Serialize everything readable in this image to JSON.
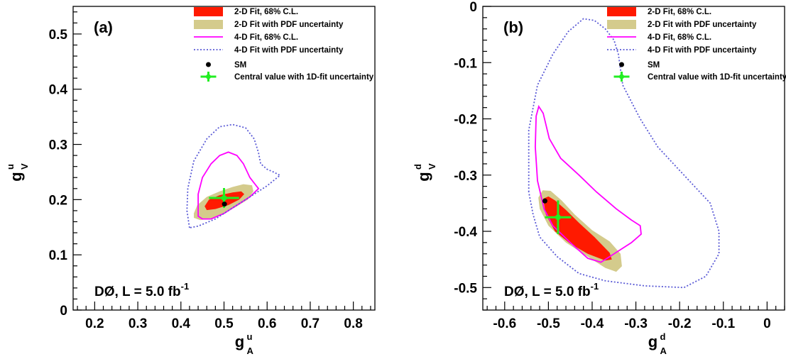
{
  "colors": {
    "fit2d": "#ff1a00",
    "pdf2d": "#d4cb8c",
    "fit4d": "#ff00ff",
    "pdf4d": "#5b5bd6",
    "central": "#22ee22",
    "sm": "#000000"
  },
  "legend": [
    {
      "key": "fit2d",
      "label": "2-D Fit, 68% C.L.",
      "style": "box",
      "color": "#ff1a00"
    },
    {
      "key": "pdf2d",
      "label": "2-D Fit with PDF uncertainty",
      "style": "box",
      "color": "#d4cb8c"
    },
    {
      "key": "fit4d",
      "label": "4-D Fit, 68% C.L.",
      "style": "line",
      "color": "#ff00ff"
    },
    {
      "key": "pdf4d",
      "label": "4-D Fit with PDF uncertainty",
      "style": "dotted",
      "color": "#5b5bd6"
    },
    {
      "key": "sm",
      "label": "SM",
      "style": "marker",
      "color": "#000000"
    },
    {
      "key": "central",
      "label": "Central value with 1D-fit uncertainty",
      "style": "cross",
      "color": "#22ee22"
    }
  ],
  "chart_data": [
    {
      "type": "scatter",
      "panel_label": "(a)",
      "experiment_label": "DØ, L = 5.0 fb",
      "experiment_label_sup": "-1",
      "xlabel": {
        "main": "g",
        "sup": "u",
        "sub": "A"
      },
      "ylabel": {
        "main": "g",
        "sup": "u",
        "sub": "V"
      },
      "xlim": [
        0.15,
        0.85
      ],
      "ylim": [
        0,
        0.55
      ],
      "xticks": [
        "0.2",
        "0.3",
        "0.4",
        "0.5",
        "0.6",
        "0.7",
        "0.8"
      ],
      "yticks": [
        "0",
        "0.1",
        "0.2",
        "0.3",
        "0.4",
        "0.5"
      ],
      "legend_position": "top-right",
      "grid": false,
      "sm_point": [
        0.501,
        0.192
      ],
      "central_value": {
        "x": 0.5,
        "y": 0.203,
        "xerr": 0.035,
        "yerr": 0.018
      },
      "contours": {
        "pdf4d": [
          [
            0.42,
            0.149
          ],
          [
            0.414,
            0.18
          ],
          [
            0.416,
            0.22
          ],
          [
            0.43,
            0.27
          ],
          [
            0.46,
            0.31
          ],
          [
            0.49,
            0.332
          ],
          [
            0.52,
            0.336
          ],
          [
            0.55,
            0.33
          ],
          [
            0.57,
            0.31
          ],
          [
            0.58,
            0.285
          ],
          [
            0.585,
            0.265
          ],
          [
            0.6,
            0.255
          ],
          [
            0.615,
            0.25
          ],
          [
            0.63,
            0.244
          ],
          [
            0.6,
            0.225
          ],
          [
            0.56,
            0.205
          ],
          [
            0.52,
            0.185
          ],
          [
            0.48,
            0.165
          ],
          [
            0.44,
            0.152
          ],
          [
            0.42,
            0.149
          ]
        ],
        "fit4d": [
          [
            0.44,
            0.18
          ],
          [
            0.44,
            0.21
          ],
          [
            0.45,
            0.24
          ],
          [
            0.47,
            0.265
          ],
          [
            0.49,
            0.28
          ],
          [
            0.51,
            0.286
          ],
          [
            0.53,
            0.28
          ],
          [
            0.545,
            0.265
          ],
          [
            0.56,
            0.24
          ],
          [
            0.575,
            0.225
          ],
          [
            0.58,
            0.22
          ],
          [
            0.56,
            0.205
          ],
          [
            0.53,
            0.19
          ],
          [
            0.5,
            0.175
          ],
          [
            0.47,
            0.165
          ],
          [
            0.45,
            0.165
          ],
          [
            0.44,
            0.17
          ],
          [
            0.44,
            0.18
          ]
        ],
        "pdf2d": [
          [
            0.43,
            0.175
          ],
          [
            0.438,
            0.19
          ],
          [
            0.46,
            0.205
          ],
          [
            0.49,
            0.215
          ],
          [
            0.52,
            0.223
          ],
          [
            0.545,
            0.228
          ],
          [
            0.565,
            0.226
          ],
          [
            0.568,
            0.215
          ],
          [
            0.555,
            0.2
          ],
          [
            0.53,
            0.188
          ],
          [
            0.5,
            0.175
          ],
          [
            0.47,
            0.166
          ],
          [
            0.445,
            0.163
          ],
          [
            0.43,
            0.167
          ],
          [
            0.43,
            0.175
          ]
        ],
        "fit2d": [
          [
            0.455,
            0.188
          ],
          [
            0.465,
            0.2
          ],
          [
            0.49,
            0.208
          ],
          [
            0.52,
            0.213
          ],
          [
            0.54,
            0.215
          ],
          [
            0.547,
            0.21
          ],
          [
            0.535,
            0.2
          ],
          [
            0.51,
            0.19
          ],
          [
            0.48,
            0.183
          ],
          [
            0.46,
            0.181
          ],
          [
            0.455,
            0.188
          ]
        ]
      }
    },
    {
      "type": "scatter",
      "panel_label": "(b)",
      "experiment_label": "DØ, L = 5.0 fb",
      "experiment_label_sup": "-1",
      "xlabel": {
        "main": "g",
        "sup": "d",
        "sub": "A"
      },
      "ylabel": {
        "main": "g",
        "sup": "d",
        "sub": "V"
      },
      "xlim": [
        -0.65,
        0.04
      ],
      "ylim": [
        -0.54,
        0.0
      ],
      "xticks": [
        "-0.6",
        "-0.5",
        "-0.4",
        "-0.3",
        "-0.2",
        "-0.1",
        "0"
      ],
      "yticks": [
        "-0.5",
        "-0.4",
        "-0.3",
        "-0.2",
        "-0.1",
        "0"
      ],
      "legend_position": "top-right",
      "grid": false,
      "sm_point": [
        -0.508,
        -0.346
      ],
      "central_value": {
        "x": -0.478,
        "y": -0.375,
        "xerr": 0.03,
        "yerr": 0.03
      },
      "contours": {
        "pdf4d": [
          [
            -0.545,
            -0.33
          ],
          [
            -0.545,
            -0.22
          ],
          [
            -0.525,
            -0.14
          ],
          [
            -0.49,
            -0.085
          ],
          [
            -0.455,
            -0.045
          ],
          [
            -0.42,
            -0.022
          ],
          [
            -0.395,
            -0.025
          ],
          [
            -0.37,
            -0.04
          ],
          [
            -0.35,
            -0.06
          ],
          [
            -0.34,
            -0.085
          ],
          [
            -0.33,
            -0.14
          ],
          [
            -0.29,
            -0.2
          ],
          [
            -0.25,
            -0.25
          ],
          [
            -0.19,
            -0.3
          ],
          [
            -0.13,
            -0.35
          ],
          [
            -0.11,
            -0.4
          ],
          [
            -0.11,
            -0.44
          ],
          [
            -0.14,
            -0.48
          ],
          [
            -0.19,
            -0.5
          ],
          [
            -0.28,
            -0.497
          ],
          [
            -0.37,
            -0.488
          ],
          [
            -0.43,
            -0.475
          ],
          [
            -0.48,
            -0.445
          ],
          [
            -0.52,
            -0.41
          ],
          [
            -0.535,
            -0.37
          ],
          [
            -0.545,
            -0.33
          ]
        ],
        "fit4d": [
          [
            -0.522,
            -0.178
          ],
          [
            -0.512,
            -0.19
          ],
          [
            -0.498,
            -0.235
          ],
          [
            -0.472,
            -0.27
          ],
          [
            -0.43,
            -0.3
          ],
          [
            -0.39,
            -0.33
          ],
          [
            -0.345,
            -0.36
          ],
          [
            -0.31,
            -0.38
          ],
          [
            -0.29,
            -0.39
          ],
          [
            -0.288,
            -0.405
          ],
          [
            -0.31,
            -0.42
          ],
          [
            -0.35,
            -0.44
          ],
          [
            -0.38,
            -0.455
          ],
          [
            -0.41,
            -0.448
          ],
          [
            -0.45,
            -0.42
          ],
          [
            -0.49,
            -0.39
          ],
          [
            -0.51,
            -0.36
          ],
          [
            -0.525,
            -0.31
          ],
          [
            -0.53,
            -0.25
          ],
          [
            -0.528,
            -0.195
          ],
          [
            -0.522,
            -0.178
          ]
        ],
        "pdf2d": [
          [
            -0.523,
            -0.34
          ],
          [
            -0.52,
            -0.36
          ],
          [
            -0.5,
            -0.39
          ],
          [
            -0.46,
            -0.42
          ],
          [
            -0.41,
            -0.445
          ],
          [
            -0.37,
            -0.465
          ],
          [
            -0.345,
            -0.472
          ],
          [
            -0.332,
            -0.462
          ],
          [
            -0.335,
            -0.44
          ],
          [
            -0.36,
            -0.418
          ],
          [
            -0.4,
            -0.398
          ],
          [
            -0.44,
            -0.37
          ],
          [
            -0.47,
            -0.345
          ],
          [
            -0.495,
            -0.328
          ],
          [
            -0.513,
            -0.327
          ],
          [
            -0.523,
            -0.34
          ]
        ],
        "fit2d": [
          [
            -0.512,
            -0.342
          ],
          [
            -0.506,
            -0.37
          ],
          [
            -0.485,
            -0.4
          ],
          [
            -0.45,
            -0.422
          ],
          [
            -0.41,
            -0.44
          ],
          [
            -0.37,
            -0.452
          ],
          [
            -0.355,
            -0.45
          ],
          [
            -0.36,
            -0.438
          ],
          [
            -0.395,
            -0.41
          ],
          [
            -0.43,
            -0.385
          ],
          [
            -0.46,
            -0.362
          ],
          [
            -0.485,
            -0.345
          ],
          [
            -0.5,
            -0.338
          ],
          [
            -0.512,
            -0.342
          ]
        ]
      }
    }
  ]
}
